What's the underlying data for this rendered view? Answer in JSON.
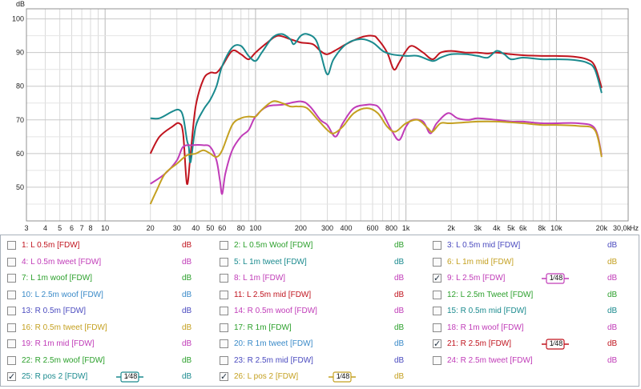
{
  "chart_data": {
    "type": "line",
    "ylabel": "dB",
    "xlabel": "Hz",
    "x_scale": "log",
    "xlim": [
      3,
      30000
    ],
    "ylim": [
      40,
      103
    ],
    "y_ticks": [
      50,
      60,
      70,
      80,
      90,
      100
    ],
    "x_ticks": [
      {
        "v": 3,
        "label": "3"
      },
      {
        "v": 4,
        "label": "4"
      },
      {
        "v": 5,
        "label": "5"
      },
      {
        "v": 6,
        "label": "6"
      },
      {
        "v": 7,
        "label": "7"
      },
      {
        "v": 8,
        "label": "8"
      },
      {
        "v": 10,
        "label": "10"
      },
      {
        "v": 20,
        "label": "20"
      },
      {
        "v": 30,
        "label": "30"
      },
      {
        "v": 40,
        "label": "40"
      },
      {
        "v": 50,
        "label": "50"
      },
      {
        "v": 60,
        "label": "60"
      },
      {
        "v": 80,
        "label": "80"
      },
      {
        "v": 100,
        "label": "100"
      },
      {
        "v": 200,
        "label": "200"
      },
      {
        "v": 300,
        "label": "300"
      },
      {
        "v": 400,
        "label": "400"
      },
      {
        "v": 600,
        "label": "600"
      },
      {
        "v": 800,
        "label": "800"
      },
      {
        "v": 1000,
        "label": "1k"
      },
      {
        "v": 2000,
        "label": "2k"
      },
      {
        "v": 3000,
        "label": "3k"
      },
      {
        "v": 4000,
        "label": "4k"
      },
      {
        "v": 5000,
        "label": "5k"
      },
      {
        "v": 6000,
        "label": "6k"
      },
      {
        "v": 8000,
        "label": "8k"
      },
      {
        "v": 10000,
        "label": "10k"
      },
      {
        "v": 20000,
        "label": "20k"
      },
      {
        "v": 30000,
        "label": "30,0k"
      }
    ],
    "grid": true,
    "series": [
      {
        "name": "21: R 2.5m [FDW]",
        "color": "#c0141e",
        "points": [
          [
            20,
            60
          ],
          [
            23,
            65
          ],
          [
            28,
            68
          ],
          [
            31,
            69
          ],
          [
            33,
            66
          ],
          [
            35,
            51
          ],
          [
            37,
            60
          ],
          [
            40,
            74
          ],
          [
            45,
            82
          ],
          [
            50,
            84
          ],
          [
            55,
            84
          ],
          [
            60,
            86
          ],
          [
            70,
            90.5
          ],
          [
            80,
            89.5
          ],
          [
            90,
            88
          ],
          [
            100,
            90
          ],
          [
            120,
            93
          ],
          [
            140,
            95
          ],
          [
            170,
            94
          ],
          [
            200,
            93
          ],
          [
            240,
            92.5
          ],
          [
            270,
            90.5
          ],
          [
            300,
            89.5
          ],
          [
            350,
            91
          ],
          [
            400,
            92.5
          ],
          [
            500,
            94.5
          ],
          [
            600,
            95
          ],
          [
            650,
            94
          ],
          [
            750,
            90
          ],
          [
            830,
            85
          ],
          [
            900,
            87
          ],
          [
            1000,
            90.5
          ],
          [
            1100,
            92
          ],
          [
            1300,
            90
          ],
          [
            1500,
            88
          ],
          [
            1700,
            90
          ],
          [
            2000,
            90.5
          ],
          [
            2500,
            90
          ],
          [
            3000,
            90
          ],
          [
            3500,
            89.7
          ],
          [
            4000,
            90
          ],
          [
            5000,
            89.5
          ],
          [
            6000,
            89.2
          ],
          [
            8000,
            89
          ],
          [
            10000,
            89
          ],
          [
            13000,
            88.8
          ],
          [
            16000,
            88
          ],
          [
            18000,
            86
          ],
          [
            20000,
            79.5
          ]
        ]
      },
      {
        "name": "25: R pos 2 [FDW]",
        "color": "#1a8a8e",
        "points": [
          [
            20,
            70.5
          ],
          [
            23,
            70.5
          ],
          [
            28,
            72.5
          ],
          [
            31,
            73
          ],
          [
            33,
            71
          ],
          [
            35,
            64
          ],
          [
            36,
            62
          ],
          [
            37,
            57.5
          ],
          [
            40,
            68
          ],
          [
            45,
            73
          ],
          [
            50,
            76
          ],
          [
            55,
            80
          ],
          [
            60,
            86
          ],
          [
            70,
            91.5
          ],
          [
            80,
            92
          ],
          [
            90,
            89
          ],
          [
            100,
            87.5
          ],
          [
            110,
            90
          ],
          [
            130,
            94.5
          ],
          [
            150,
            95.5
          ],
          [
            170,
            94
          ],
          [
            180,
            92.5
          ],
          [
            200,
            95
          ],
          [
            220,
            95.5
          ],
          [
            250,
            94
          ],
          [
            270,
            90
          ],
          [
            300,
            83.5
          ],
          [
            330,
            88
          ],
          [
            400,
            92.5
          ],
          [
            500,
            94
          ],
          [
            600,
            93
          ],
          [
            700,
            90.5
          ],
          [
            800,
            89.5
          ],
          [
            1000,
            89
          ],
          [
            1200,
            89
          ],
          [
            1500,
            87.5
          ],
          [
            1700,
            88.5
          ],
          [
            2000,
            89.5
          ],
          [
            2500,
            89.5
          ],
          [
            3000,
            89
          ],
          [
            3500,
            88.5
          ],
          [
            4000,
            90.5
          ],
          [
            4500,
            89.5
          ],
          [
            5000,
            88
          ],
          [
            6000,
            88.5
          ],
          [
            8000,
            88
          ],
          [
            10000,
            88
          ],
          [
            13000,
            87.8
          ],
          [
            16000,
            87
          ],
          [
            18000,
            85
          ],
          [
            20000,
            78
          ]
        ]
      },
      {
        "name": "9: L  2.5m [FDW]",
        "color": "#c03cb8",
        "points": [
          [
            20,
            51
          ],
          [
            25,
            54
          ],
          [
            30,
            58
          ],
          [
            33,
            62
          ],
          [
            38,
            62.5
          ],
          [
            45,
            62.5
          ],
          [
            50,
            62
          ],
          [
            55,
            58
          ],
          [
            58,
            52
          ],
          [
            60,
            48
          ],
          [
            63,
            54
          ],
          [
            70,
            61
          ],
          [
            80,
            65
          ],
          [
            90,
            67
          ],
          [
            100,
            71
          ],
          [
            120,
            74
          ],
          [
            150,
            74.5
          ],
          [
            200,
            75.5
          ],
          [
            230,
            74
          ],
          [
            270,
            70
          ],
          [
            300,
            68.5
          ],
          [
            340,
            65
          ],
          [
            380,
            69
          ],
          [
            450,
            73.5
          ],
          [
            550,
            74.5
          ],
          [
            600,
            74.5
          ],
          [
            650,
            74
          ],
          [
            700,
            72
          ],
          [
            800,
            67
          ],
          [
            900,
            64
          ],
          [
            1000,
            68
          ],
          [
            1100,
            70
          ],
          [
            1300,
            69.5
          ],
          [
            1450,
            66
          ],
          [
            1600,
            69
          ],
          [
            1900,
            72
          ],
          [
            2200,
            70.5
          ],
          [
            2600,
            70
          ],
          [
            3000,
            70.5
          ],
          [
            4000,
            70
          ],
          [
            5000,
            69.5
          ],
          [
            6000,
            69.5
          ],
          [
            8000,
            69
          ],
          [
            10000,
            69
          ],
          [
            14000,
            69
          ],
          [
            18000,
            67.5
          ],
          [
            20000,
            59.5
          ]
        ]
      },
      {
        "name": "26: L pos 2 [FDW]",
        "color": "#c4a020",
        "points": [
          [
            20,
            45
          ],
          [
            22,
            49
          ],
          [
            25,
            54
          ],
          [
            30,
            57
          ],
          [
            35,
            59.5
          ],
          [
            40,
            60
          ],
          [
            45,
            61
          ],
          [
            50,
            60
          ],
          [
            55,
            59
          ],
          [
            60,
            61
          ],
          [
            70,
            68.5
          ],
          [
            80,
            70.5
          ],
          [
            90,
            71
          ],
          [
            100,
            71
          ],
          [
            110,
            73
          ],
          [
            130,
            75.5
          ],
          [
            150,
            75
          ],
          [
            170,
            74
          ],
          [
            190,
            74
          ],
          [
            220,
            73.5
          ],
          [
            260,
            70
          ],
          [
            300,
            67
          ],
          [
            330,
            66
          ],
          [
            380,
            68
          ],
          [
            450,
            72
          ],
          [
            550,
            73.5
          ],
          [
            650,
            72
          ],
          [
            750,
            68
          ],
          [
            850,
            66.5
          ],
          [
            1000,
            69
          ],
          [
            1200,
            70
          ],
          [
            1400,
            67.5
          ],
          [
            1500,
            66.5
          ],
          [
            1700,
            69
          ],
          [
            2000,
            69
          ],
          [
            3000,
            69.5
          ],
          [
            4000,
            69.5
          ],
          [
            6000,
            69
          ],
          [
            8000,
            68.5
          ],
          [
            10000,
            68.5
          ],
          [
            14000,
            68.2
          ],
          [
            18000,
            67
          ],
          [
            20000,
            59
          ]
        ]
      }
    ]
  },
  "legend": {
    "items": [
      {
        "label": "1: L 0.5m [FDW]",
        "unit": "dB",
        "color": "#c0141e",
        "checked": false,
        "smoothing": ""
      },
      {
        "label": "2: L 0.5m Woof [FDW]",
        "unit": "dB",
        "color": "#2ca02c",
        "checked": false,
        "smoothing": ""
      },
      {
        "label": "3: L 0.5m mid [FDW]",
        "unit": "dB",
        "color": "#4a4abf",
        "checked": false,
        "smoothing": ""
      },
      {
        "label": "4: L 0.5m tweet [FDW]",
        "unit": "dB",
        "color": "#c03cb8",
        "checked": false,
        "smoothing": ""
      },
      {
        "label": "5: L 1m tweet [FDW]",
        "unit": "dB",
        "color": "#1a8a8e",
        "checked": false,
        "smoothing": ""
      },
      {
        "label": "6: L 1m mid [FDW]",
        "unit": "dB",
        "color": "#c4a020",
        "checked": false,
        "smoothing": ""
      },
      {
        "label": "7: L 1m woof [FDW]",
        "unit": "dB",
        "color": "#2ca02c",
        "checked": false,
        "smoothing": ""
      },
      {
        "label": "8: L 1m [FDW]",
        "unit": "dB",
        "color": "#c03cb8",
        "checked": false,
        "smoothing": ""
      },
      {
        "label": "9: L  2.5m [FDW]",
        "unit": "dB",
        "color": "#c03cb8",
        "checked": true,
        "smoothing": "1⁄48"
      },
      {
        "label": "10: L 2.5m woof [FDW]",
        "unit": "dB",
        "color": "#3a8ac8",
        "checked": false,
        "smoothing": ""
      },
      {
        "label": "11: L 2.5m mid [FDW]",
        "unit": "dB",
        "color": "#c0141e",
        "checked": false,
        "smoothing": ""
      },
      {
        "label": "12: L 2.5m Tweet [FDW]",
        "unit": "dB",
        "color": "#2ca02c",
        "checked": false,
        "smoothing": ""
      },
      {
        "label": "13: R 0.5m [FDW]",
        "unit": "dB",
        "color": "#4a4abf",
        "checked": false,
        "smoothing": ""
      },
      {
        "label": "14: R 0.5m woof [FDW]",
        "unit": "dB",
        "color": "#c03cb8",
        "checked": false,
        "smoothing": ""
      },
      {
        "label": "15: R 0.5m mid [FDW]",
        "unit": "dB",
        "color": "#1a8a8e",
        "checked": false,
        "smoothing": ""
      },
      {
        "label": "16: R 0.5m tweet [FDW]",
        "unit": "dB",
        "color": "#c4a020",
        "checked": false,
        "smoothing": ""
      },
      {
        "label": "17: R 1m [FDW]",
        "unit": "dB",
        "color": "#2ca02c",
        "checked": false,
        "smoothing": ""
      },
      {
        "label": "18: R 1m woof [FDW]",
        "unit": "dB",
        "color": "#c03cb8",
        "checked": false,
        "smoothing": ""
      },
      {
        "label": "19: R 1m mid [FDW]",
        "unit": "dB",
        "color": "#c03cb8",
        "checked": false,
        "smoothing": ""
      },
      {
        "label": "20: R 1m tweet [FDW]",
        "unit": "dB",
        "color": "#3a8ac8",
        "checked": false,
        "smoothing": ""
      },
      {
        "label": "21: R 2.5m [FDW]",
        "unit": "dB",
        "color": "#c0141e",
        "checked": true,
        "smoothing": "1⁄48"
      },
      {
        "label": "22: R 2.5m woof [FDW]",
        "unit": "dB",
        "color": "#2ca02c",
        "checked": false,
        "smoothing": ""
      },
      {
        "label": "23: R 2.5m mid [FDW]",
        "unit": "dB",
        "color": "#4a4abf",
        "checked": false,
        "smoothing": ""
      },
      {
        "label": "24: R 2.5m tweet [FDW]",
        "unit": "dB",
        "color": "#c03cb8",
        "checked": false,
        "smoothing": ""
      },
      {
        "label": "25: R pos 2 [FDW]",
        "unit": "dB",
        "color": "#1a8a8e",
        "checked": true,
        "smoothing": "1⁄48"
      },
      {
        "label": "26: L pos 2 [FDW]",
        "unit": "dB",
        "color": "#c4a020",
        "checked": true,
        "smoothing": "1⁄48"
      }
    ]
  }
}
